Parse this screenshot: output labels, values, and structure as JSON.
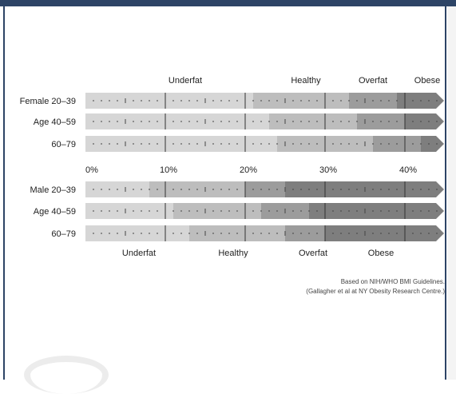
{
  "chart_data": [
    {
      "type": "bar",
      "title": "",
      "xlabel": "",
      "ylabel": "",
      "xlim": [
        0,
        45
      ],
      "categories": [
        "Female 20–39",
        "Age 40–59",
        "60–79"
      ],
      "zone_names": [
        "Underfat",
        "Healthy",
        "Overfat",
        "Obese"
      ],
      "zone_colors": [
        "#d6d6d6",
        "#bdbdbd",
        "#9c9c9c",
        "#7e7e7e"
      ],
      "series": [
        {
          "name": "Underfat",
          "values": [
            21,
            23,
            24
          ]
        },
        {
          "name": "Healthy",
          "values": [
            33,
            34,
            36
          ]
        },
        {
          "name": "Overfat",
          "values": [
            39,
            40,
            42
          ]
        },
        {
          "name": "Obese",
          "values": [
            45,
            45,
            45
          ]
        }
      ]
    },
    {
      "type": "bar",
      "title": "",
      "xlabel": "",
      "ylabel": "",
      "xlim": [
        0,
        45
      ],
      "x_ticks": [
        0,
        10,
        20,
        30,
        40
      ],
      "x_tick_labels": [
        "0%",
        "10%",
        "20%",
        "30%",
        "40%"
      ],
      "categories": [
        "Male 20–39",
        "Age 40–59",
        "60–79"
      ],
      "zone_names": [
        "Underfat",
        "Healthy",
        "Overfat",
        "Obese"
      ],
      "zone_colors": [
        "#d6d6d6",
        "#bdbdbd",
        "#9c9c9c",
        "#7e7e7e"
      ],
      "series": [
        {
          "name": "Underfat",
          "values": [
            8,
            11,
            13
          ]
        },
        {
          "name": "Healthy",
          "values": [
            20,
            22,
            25
          ]
        },
        {
          "name": "Overfat",
          "values": [
            25,
            28,
            30
          ]
        },
        {
          "name": "Obese",
          "values": [
            45,
            45,
            45
          ]
        }
      ]
    }
  ],
  "note": {
    "line1": "Based on NIH/WHO BMI Guidelines.",
    "line2": "(Gallagher et al at NY Obesity Research Centre.)"
  }
}
